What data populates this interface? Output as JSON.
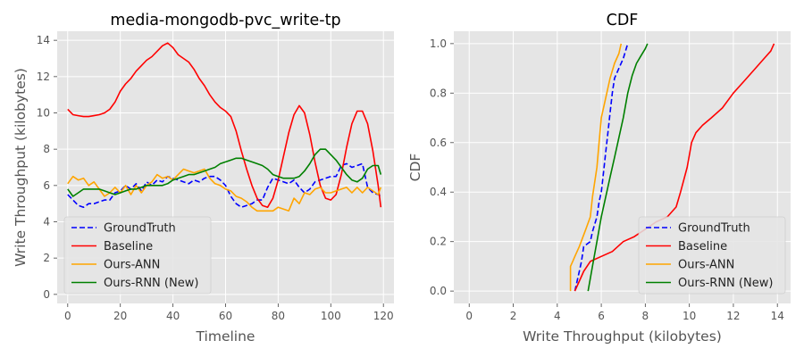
{
  "colors": {
    "GroundTruth": "#0000ff",
    "Baseline": "#ff0000",
    "Ours-ANN": "#ffa500",
    "Ours-RNN (New)": "#008000",
    "background": "#e5e5e5",
    "grid": "#ffffff"
  },
  "chart_data": [
    {
      "type": "line",
      "title": "media-mongodb-pvc_write-tp",
      "xlabel": "Timeline",
      "ylabel": "Write Throughput (kilobytes)",
      "xlim": [
        -4,
        124
      ],
      "ylim": [
        -0.5,
        14.5
      ],
      "xticks": [
        "0",
        "20",
        "40",
        "60",
        "80",
        "100",
        "120"
      ],
      "yticks": [
        "0",
        "2",
        "4",
        "6",
        "8",
        "10",
        "12",
        "14"
      ],
      "grid": true,
      "legend_position": "lower-left",
      "series": [
        {
          "name": "GroundTruth",
          "style": "dashed",
          "x": [
            0,
            2,
            4,
            6,
            8,
            10,
            12,
            14,
            16,
            18,
            20,
            22,
            24,
            26,
            28,
            30,
            32,
            34,
            36,
            38,
            40,
            42,
            44,
            46,
            48,
            50,
            52,
            54,
            56,
            58,
            60,
            62,
            64,
            66,
            68,
            70,
            72,
            74,
            76,
            78,
            80,
            82,
            84,
            86,
            88,
            90,
            92,
            94,
            96,
            98,
            100,
            102,
            104,
            106,
            108,
            110,
            112,
            114,
            116,
            118,
            119
          ],
          "y": [
            5.5,
            5.2,
            4.9,
            4.8,
            5.0,
            5.0,
            5.1,
            5.2,
            5.2,
            5.6,
            5.7,
            6.0,
            5.8,
            6.1,
            5.7,
            6.2,
            6.0,
            6.3,
            6.2,
            6.5,
            6.4,
            6.3,
            6.2,
            6.1,
            6.3,
            6.2,
            6.4,
            6.5,
            6.5,
            6.3,
            6.0,
            5.4,
            5.0,
            4.8,
            4.9,
            5.0,
            5.2,
            5.2,
            5.9,
            6.4,
            6.3,
            6.2,
            6.1,
            6.3,
            5.9,
            5.6,
            5.8,
            6.2,
            6.3,
            6.4,
            6.5,
            6.5,
            7.1,
            7.2,
            7.0,
            7.1,
            7.2,
            5.9,
            5.6,
            5.5,
            5.4
          ]
        },
        {
          "name": "Baseline",
          "style": "solid",
          "x": [
            0,
            2,
            4,
            6,
            8,
            10,
            12,
            14,
            16,
            18,
            20,
            22,
            24,
            26,
            28,
            30,
            32,
            34,
            36,
            38,
            40,
            42,
            44,
            46,
            48,
            50,
            52,
            54,
            56,
            58,
            60,
            62,
            64,
            66,
            68,
            70,
            72,
            74,
            76,
            78,
            80,
            82,
            84,
            86,
            88,
            90,
            92,
            94,
            96,
            98,
            100,
            102,
            104,
            106,
            108,
            110,
            112,
            114,
            116,
            118,
            119
          ],
          "y": [
            10.2,
            9.9,
            9.85,
            9.8,
            9.8,
            9.85,
            9.9,
            10.0,
            10.2,
            10.6,
            11.2,
            11.6,
            11.9,
            12.3,
            12.6,
            12.9,
            13.1,
            13.4,
            13.7,
            13.85,
            13.6,
            13.2,
            13.0,
            12.8,
            12.4,
            11.9,
            11.5,
            11.0,
            10.6,
            10.3,
            10.1,
            9.8,
            9.0,
            7.9,
            6.9,
            6.0,
            5.3,
            4.9,
            4.8,
            5.3,
            6.3,
            7.6,
            8.9,
            9.9,
            10.4,
            10.0,
            8.8,
            7.3,
            6.0,
            5.3,
            5.2,
            5.5,
            6.6,
            8.1,
            9.4,
            10.1,
            10.1,
            9.4,
            7.9,
            6.0,
            4.8
          ]
        },
        {
          "name": "Ours-ANN",
          "style": "solid",
          "x": [
            0,
            2,
            4,
            6,
            8,
            10,
            12,
            14,
            16,
            18,
            20,
            22,
            24,
            26,
            28,
            30,
            32,
            34,
            36,
            38,
            40,
            42,
            44,
            46,
            48,
            50,
            52,
            54,
            56,
            58,
            60,
            62,
            64,
            66,
            68,
            70,
            72,
            74,
            76,
            78,
            80,
            82,
            84,
            86,
            88,
            90,
            92,
            94,
            96,
            98,
            100,
            102,
            104,
            106,
            108,
            110,
            112,
            114,
            116,
            118,
            119
          ],
          "y": [
            6.1,
            6.5,
            6.3,
            6.4,
            6.0,
            6.2,
            5.8,
            5.4,
            5.6,
            5.9,
            5.6,
            6.0,
            5.5,
            6.0,
            5.6,
            6.0,
            6.2,
            6.6,
            6.4,
            6.5,
            6.3,
            6.6,
            6.9,
            6.8,
            6.7,
            6.8,
            6.9,
            6.4,
            6.1,
            6.0,
            5.8,
            5.7,
            5.4,
            5.3,
            5.1,
            4.8,
            4.6,
            4.6,
            4.6,
            4.6,
            4.8,
            4.7,
            4.6,
            5.3,
            5.0,
            5.6,
            5.5,
            5.8,
            5.9,
            5.6,
            5.6,
            5.7,
            5.8,
            5.9,
            5.6,
            5.9,
            5.6,
            5.9,
            5.7,
            5.5,
            5.9
          ]
        },
        {
          "name": "Ours-RNN (New)",
          "style": "solid",
          "x": [
            0,
            2,
            4,
            6,
            8,
            10,
            12,
            14,
            16,
            18,
            20,
            22,
            24,
            26,
            28,
            30,
            32,
            34,
            36,
            38,
            40,
            42,
            44,
            46,
            48,
            50,
            52,
            54,
            56,
            58,
            60,
            62,
            64,
            66,
            68,
            70,
            72,
            74,
            76,
            78,
            80,
            82,
            84,
            86,
            88,
            90,
            92,
            94,
            96,
            98,
            100,
            102,
            104,
            106,
            108,
            110,
            112,
            114,
            116,
            118,
            119
          ],
          "y": [
            5.8,
            5.4,
            5.6,
            5.8,
            5.8,
            5.8,
            5.8,
            5.7,
            5.6,
            5.5,
            5.6,
            5.7,
            5.8,
            5.8,
            5.9,
            6.0,
            6.0,
            6.0,
            6.0,
            6.1,
            6.3,
            6.4,
            6.5,
            6.6,
            6.6,
            6.7,
            6.8,
            6.9,
            7.0,
            7.2,
            7.3,
            7.4,
            7.5,
            7.5,
            7.4,
            7.3,
            7.2,
            7.1,
            6.9,
            6.6,
            6.5,
            6.4,
            6.4,
            6.4,
            6.5,
            6.8,
            7.2,
            7.7,
            8.0,
            8.0,
            7.7,
            7.4,
            7.0,
            6.6,
            6.3,
            6.2,
            6.4,
            6.9,
            7.1,
            7.1,
            6.6
          ]
        }
      ]
    },
    {
      "type": "line",
      "title": "CDF",
      "xlabel": "Write Throughput (kilobytes)",
      "ylabel": "CDF",
      "xlim": [
        -0.7,
        14.6
      ],
      "ylim": [
        -0.05,
        1.05
      ],
      "xticks": [
        "0",
        "2",
        "4",
        "6",
        "8",
        "10",
        "12",
        "14"
      ],
      "yticks": [
        "0.0",
        "0.2",
        "0.4",
        "0.6",
        "0.8",
        "1.0"
      ],
      "grid": true,
      "legend_position": "lower-right",
      "series": [
        {
          "name": "GroundTruth",
          "style": "dashed",
          "x": [
            4.8,
            5.0,
            5.1,
            5.2,
            5.5,
            5.6,
            5.8,
            5.9,
            6.0,
            6.1,
            6.2,
            6.3,
            6.4,
            6.5,
            6.6,
            6.8,
            7.0,
            7.1,
            7.2
          ],
          "y": [
            0.0,
            0.08,
            0.12,
            0.18,
            0.2,
            0.24,
            0.3,
            0.36,
            0.4,
            0.48,
            0.56,
            0.64,
            0.72,
            0.8,
            0.86,
            0.9,
            0.94,
            0.97,
            1.0
          ]
        },
        {
          "name": "Baseline",
          "style": "solid",
          "x": [
            4.8,
            5.0,
            5.2,
            5.5,
            6.0,
            6.5,
            7.0,
            7.5,
            8.0,
            8.5,
            9.0,
            9.4,
            9.6,
            9.9,
            10.0,
            10.1,
            10.3,
            10.6,
            11.0,
            11.5,
            12.0,
            12.5,
            13.0,
            13.4,
            13.7,
            13.85
          ],
          "y": [
            0.0,
            0.04,
            0.08,
            0.12,
            0.14,
            0.16,
            0.2,
            0.22,
            0.25,
            0.28,
            0.3,
            0.34,
            0.4,
            0.5,
            0.55,
            0.6,
            0.64,
            0.67,
            0.7,
            0.74,
            0.8,
            0.85,
            0.9,
            0.94,
            0.97,
            1.0
          ]
        },
        {
          "name": "Ours-ANN",
          "style": "solid",
          "x": [
            4.6,
            4.6,
            4.7,
            4.8,
            5.0,
            5.3,
            5.5,
            5.6,
            5.8,
            5.9,
            6.0,
            6.2,
            6.4,
            6.6,
            6.8,
            6.9
          ],
          "y": [
            0.0,
            0.1,
            0.12,
            0.14,
            0.18,
            0.25,
            0.3,
            0.38,
            0.5,
            0.6,
            0.7,
            0.78,
            0.86,
            0.92,
            0.96,
            1.0
          ]
        },
        {
          "name": "Ours-RNN (New)",
          "style": "solid",
          "x": [
            5.4,
            5.6,
            5.8,
            6.0,
            6.2,
            6.4,
            6.6,
            6.8,
            7.0,
            7.2,
            7.4,
            7.6,
            7.8,
            8.0,
            8.1
          ],
          "y": [
            0.0,
            0.1,
            0.2,
            0.3,
            0.38,
            0.46,
            0.54,
            0.62,
            0.7,
            0.8,
            0.87,
            0.92,
            0.95,
            0.98,
            1.0
          ]
        }
      ]
    }
  ]
}
